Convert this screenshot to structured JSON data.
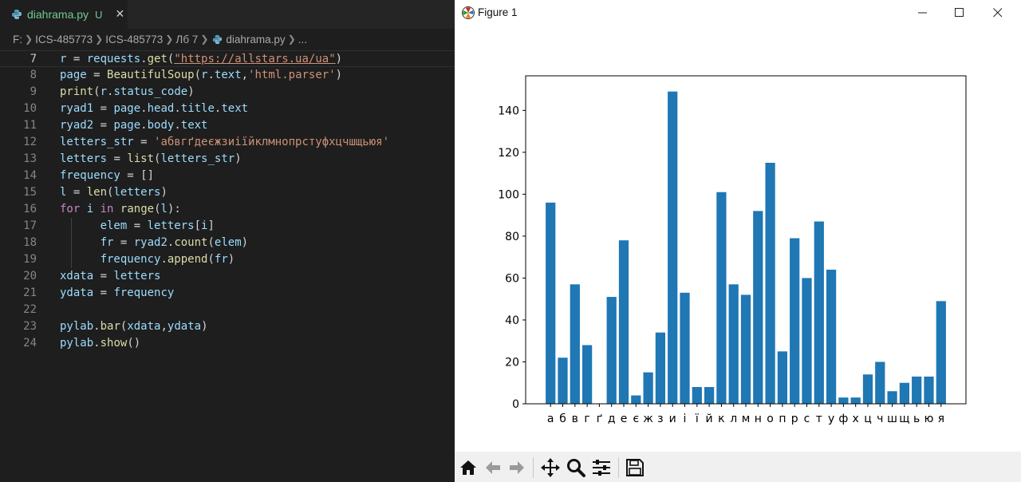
{
  "editor": {
    "tab": {
      "filename": "diahrama.py",
      "modified": "U",
      "close": "✕"
    },
    "breadcrumb": [
      "F:",
      "ICS-485773",
      "ICS-485773",
      "Лб 7",
      "diahrama.py",
      "..."
    ],
    "lines": [
      {
        "num": "7",
        "tokens": [
          [
            "v",
            "r"
          ],
          [
            "o",
            " = "
          ],
          [
            "v",
            "requests"
          ],
          [
            "o",
            "."
          ],
          [
            "f",
            "get"
          ],
          [
            "o",
            "("
          ],
          [
            "su",
            "\"https://allstars.ua/ua\""
          ],
          [
            "o",
            ")"
          ]
        ],
        "current": true
      },
      {
        "num": "8",
        "tokens": [
          [
            "v",
            "page"
          ],
          [
            "o",
            " = "
          ],
          [
            "f",
            "BeautifulSoup"
          ],
          [
            "o",
            "("
          ],
          [
            "v",
            "r"
          ],
          [
            "o",
            "."
          ],
          [
            "v",
            "text"
          ],
          [
            "o",
            ","
          ],
          [
            "s",
            "'html.parser'"
          ],
          [
            "o",
            ")"
          ]
        ]
      },
      {
        "num": "9",
        "tokens": [
          [
            "f",
            "print"
          ],
          [
            "o",
            "("
          ],
          [
            "v",
            "r"
          ],
          [
            "o",
            "."
          ],
          [
            "v",
            "status_code"
          ],
          [
            "o",
            ")"
          ]
        ]
      },
      {
        "num": "10",
        "tokens": [
          [
            "v",
            "ryad1"
          ],
          [
            "o",
            " = "
          ],
          [
            "v",
            "page"
          ],
          [
            "o",
            "."
          ],
          [
            "v",
            "head"
          ],
          [
            "o",
            "."
          ],
          [
            "v",
            "title"
          ],
          [
            "o",
            "."
          ],
          [
            "v",
            "text"
          ]
        ]
      },
      {
        "num": "11",
        "tokens": [
          [
            "v",
            "ryad2"
          ],
          [
            "o",
            " = "
          ],
          [
            "v",
            "page"
          ],
          [
            "o",
            "."
          ],
          [
            "v",
            "body"
          ],
          [
            "o",
            "."
          ],
          [
            "v",
            "text"
          ]
        ]
      },
      {
        "num": "12",
        "tokens": [
          [
            "v",
            "letters_str"
          ],
          [
            "o",
            " = "
          ],
          [
            "s",
            "'абвгґдеєжзиіїйклмнопрстуфхцчшщьюя'"
          ]
        ]
      },
      {
        "num": "13",
        "tokens": [
          [
            "v",
            "letters"
          ],
          [
            "o",
            " = "
          ],
          [
            "f",
            "list"
          ],
          [
            "o",
            "("
          ],
          [
            "v",
            "letters_str"
          ],
          [
            "o",
            ")"
          ]
        ]
      },
      {
        "num": "14",
        "tokens": [
          [
            "v",
            "frequency"
          ],
          [
            "o",
            " = []"
          ]
        ]
      },
      {
        "num": "15",
        "tokens": [
          [
            "v",
            "l"
          ],
          [
            "o",
            " = "
          ],
          [
            "f",
            "len"
          ],
          [
            "o",
            "("
          ],
          [
            "v",
            "letters"
          ],
          [
            "o",
            ")"
          ]
        ]
      },
      {
        "num": "16",
        "tokens": [
          [
            "k",
            "for"
          ],
          [
            "o",
            " "
          ],
          [
            "v",
            "i"
          ],
          [
            "o",
            " "
          ],
          [
            "k",
            "in"
          ],
          [
            "o",
            " "
          ],
          [
            "f",
            "range"
          ],
          [
            "o",
            "("
          ],
          [
            "v",
            "l"
          ],
          [
            "o",
            "):"
          ]
        ]
      },
      {
        "num": "17",
        "indent": true,
        "tokens": [
          [
            "o",
            "      "
          ],
          [
            "v",
            "elem"
          ],
          [
            "o",
            " = "
          ],
          [
            "v",
            "letters"
          ],
          [
            "o",
            "["
          ],
          [
            "v",
            "i"
          ],
          [
            "o",
            "]"
          ]
        ]
      },
      {
        "num": "18",
        "indent": true,
        "tokens": [
          [
            "o",
            "      "
          ],
          [
            "v",
            "fr"
          ],
          [
            "o",
            " = "
          ],
          [
            "v",
            "ryad2"
          ],
          [
            "o",
            "."
          ],
          [
            "f",
            "count"
          ],
          [
            "o",
            "("
          ],
          [
            "v",
            "elem"
          ],
          [
            "o",
            ")"
          ]
        ]
      },
      {
        "num": "19",
        "indent": true,
        "tokens": [
          [
            "o",
            "      "
          ],
          [
            "v",
            "frequency"
          ],
          [
            "o",
            "."
          ],
          [
            "f",
            "append"
          ],
          [
            "o",
            "("
          ],
          [
            "v",
            "fr"
          ],
          [
            "o",
            ")"
          ]
        ]
      },
      {
        "num": "20",
        "tokens": [
          [
            "v",
            "xdata"
          ],
          [
            "o",
            " = "
          ],
          [
            "v",
            "letters"
          ]
        ]
      },
      {
        "num": "21",
        "tokens": [
          [
            "v",
            "ydata"
          ],
          [
            "o",
            " = "
          ],
          [
            "v",
            "frequency"
          ]
        ]
      },
      {
        "num": "22",
        "tokens": []
      },
      {
        "num": "23",
        "tokens": [
          [
            "v",
            "pylab"
          ],
          [
            "o",
            "."
          ],
          [
            "f",
            "bar"
          ],
          [
            "o",
            "("
          ],
          [
            "v",
            "xdata"
          ],
          [
            "o",
            ","
          ],
          [
            "v",
            "ydata"
          ],
          [
            "o",
            ")"
          ]
        ]
      },
      {
        "num": "24",
        "tokens": [
          [
            "v",
            "pylab"
          ],
          [
            "o",
            "."
          ],
          [
            "f",
            "show"
          ],
          [
            "o",
            "()"
          ]
        ]
      }
    ]
  },
  "figure_window": {
    "title": "Figure 1",
    "toolbar_icons": [
      "home-icon",
      "back-icon",
      "forward-icon",
      "pan-icon",
      "zoom-icon",
      "configure-subplots-icon",
      "save-icon"
    ]
  },
  "colors": {
    "bar": "#1f77b4",
    "editor_bg": "#1e1e1e",
    "toolbar_bg": "#f0f0f0"
  },
  "chart_data": {
    "type": "bar",
    "categories": [
      "а",
      "б",
      "в",
      "г",
      "ґ",
      "д",
      "е",
      "є",
      "ж",
      "з",
      "и",
      "і",
      "ї",
      "й",
      "к",
      "л",
      "м",
      "н",
      "о",
      "п",
      "р",
      "с",
      "т",
      "у",
      "ф",
      "х",
      "ц",
      "ч",
      "ш",
      "щ",
      "ь",
      "ю",
      "я"
    ],
    "values": [
      96,
      22,
      57,
      28,
      0,
      51,
      78,
      4,
      15,
      34,
      149,
      53,
      8,
      8,
      101,
      57,
      52,
      92,
      115,
      25,
      79,
      60,
      87,
      64,
      3,
      3,
      14,
      20,
      6,
      10,
      13,
      13,
      49
    ],
    "yticks": [
      0,
      20,
      40,
      60,
      80,
      100,
      120,
      140
    ],
    "ylim": [
      0,
      156.5
    ],
    "title": "",
    "xlabel": "",
    "ylabel": ""
  }
}
